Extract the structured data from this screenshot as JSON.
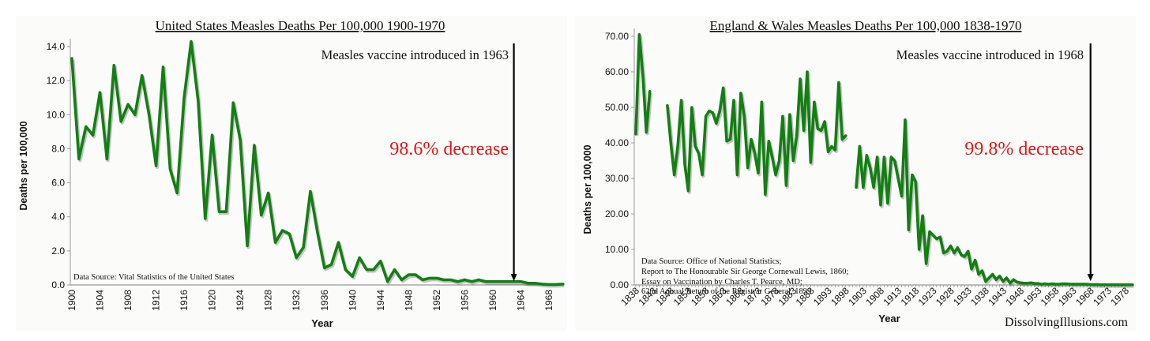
{
  "chart_data": [
    {
      "type": "line",
      "title": "United States Measles Deaths Per 100,000 1900-1970",
      "xlabel": "Year",
      "ylabel": "Deaths per 100,000",
      "ylim": [
        0,
        14
      ],
      "xlim": [
        1900,
        1970
      ],
      "grid": false,
      "y_ticks": [
        "0.0",
        "2.0",
        "4.0",
        "6.0",
        "8.0",
        "10.0",
        "12.0",
        "14.0"
      ],
      "x_ticks": [
        "1900",
        "1904",
        "1908",
        "1912",
        "1916",
        "1920",
        "1924",
        "1928",
        "1932",
        "1936",
        "1940",
        "1944",
        "1948",
        "1952",
        "1956",
        "1960",
        "1964",
        "1968"
      ],
      "annotations": {
        "vaccine": "Measles vaccine introduced in 1963",
        "vaccine_year": 1963,
        "decrease": "98.6% decrease",
        "source": "Data Source:  Vital Statistics of the United States"
      },
      "series": [
        {
          "name": "Deaths per 100,000",
          "color": "#137f13",
          "x": [
            1900,
            1901,
            1902,
            1903,
            1904,
            1905,
            1906,
            1907,
            1908,
            1909,
            1910,
            1911,
            1912,
            1913,
            1914,
            1915,
            1916,
            1917,
            1918,
            1919,
            1920,
            1921,
            1922,
            1923,
            1924,
            1925,
            1926,
            1927,
            1928,
            1929,
            1930,
            1931,
            1932,
            1933,
            1934,
            1935,
            1936,
            1937,
            1938,
            1939,
            1940,
            1941,
            1942,
            1943,
            1944,
            1945,
            1946,
            1947,
            1948,
            1949,
            1950,
            1951,
            1952,
            1953,
            1954,
            1955,
            1956,
            1957,
            1958,
            1959,
            1960,
            1961,
            1962,
            1963,
            1964,
            1965,
            1966,
            1967,
            1968,
            1969,
            1970
          ],
          "values": [
            13.3,
            7.4,
            9.3,
            8.8,
            11.3,
            7.4,
            12.9,
            9.6,
            10.6,
            10.0,
            12.3,
            10.0,
            7.0,
            12.8,
            6.8,
            5.4,
            11.0,
            14.3,
            10.8,
            3.9,
            8.8,
            4.3,
            4.3,
            10.7,
            8.5,
            2.3,
            8.2,
            4.1,
            5.4,
            2.5,
            3.2,
            3.0,
            1.6,
            2.2,
            5.5,
            3.1,
            1.0,
            1.2,
            2.5,
            0.9,
            0.5,
            1.6,
            0.9,
            0.9,
            1.4,
            0.2,
            0.9,
            0.3,
            0.6,
            0.6,
            0.3,
            0.4,
            0.4,
            0.3,
            0.3,
            0.2,
            0.3,
            0.2,
            0.3,
            0.2,
            0.2,
            0.2,
            0.2,
            0.2,
            0.2,
            0.1,
            0.1,
            0.05,
            0.03,
            0.03,
            0.05
          ]
        }
      ]
    },
    {
      "type": "line",
      "title": "England & Wales Measles Deaths Per 100,000 1838-1970",
      "xlabel": "Year",
      "ylabel": "Deaths per 100,000",
      "ylim": [
        0,
        70
      ],
      "xlim": [
        1838,
        1978
      ],
      "grid": false,
      "y_ticks": [
        "0.00",
        "10.00",
        "20.00",
        "30.00",
        "40.00",
        "50.00",
        "60.00",
        "70.00"
      ],
      "x_ticks": [
        "1838",
        "1843",
        "1848",
        "1853",
        "1858",
        "1863",
        "1868",
        "1873",
        "1878",
        "1883",
        "1888",
        "1893",
        "1898",
        "1903",
        "1908",
        "1913",
        "1918",
        "1923",
        "1928",
        "1933",
        "1938",
        "1943",
        "1948",
        "1953",
        "1958",
        "1963",
        "1968",
        "1973",
        "1978"
      ],
      "annotations": {
        "vaccine": "Measles vaccine introduced in 1968",
        "vaccine_year": 1968,
        "decrease": "99.8% decrease",
        "source": [
          "Data Source:  Office of National Statistics;",
          "Report to The Honourable Sir George Cornewall Lewis, 1860;",
          "Essay on Vaccination by Charles T. Pearce, MD;",
          "62nd Annual Return of the Registrar General, 1899"
        ],
        "credit": "DissolvingIllusions.com"
      },
      "series": [
        {
          "name": "Deaths per 100,000",
          "color": "#137f13",
          "x_start": 1838,
          "values": [
            42.5,
            70.5,
            59,
            43,
            54.5,
            null,
            null,
            null,
            null,
            50.5,
            40,
            31,
            39,
            52,
            34,
            26.5,
            50,
            39,
            37,
            31,
            47.5,
            49,
            48.5,
            45.5,
            49,
            55.5,
            40.5,
            41,
            52,
            31,
            54,
            47.5,
            33,
            41,
            37,
            31.5,
            51.5,
            25.5,
            40.5,
            36,
            31,
            35,
            47.5,
            28,
            48,
            35,
            42,
            58,
            43.5,
            60,
            34.5,
            51.5,
            44,
            43.5,
            46,
            37.5,
            39,
            38,
            57,
            41,
            42,
            null,
            null,
            27.5,
            39,
            27.5,
            36.5,
            33,
            27.5,
            36,
            22.5,
            36,
            23,
            36,
            35,
            30,
            25,
            46.5,
            15.5,
            31,
            29,
            10,
            19.5,
            6,
            15,
            14,
            13,
            13.5,
            9,
            9.5,
            11,
            9,
            10.5,
            8.5,
            8,
            9.5,
            4.5,
            7,
            3,
            4,
            1,
            2,
            3,
            1.5,
            2.5,
            1,
            2,
            0.5,
            1.5,
            0.8,
            0.6,
            0.5,
            0.5,
            0.6,
            0.4,
            0.4,
            0.2,
            0.3,
            0.2,
            0.3,
            0.2,
            0.2,
            0.3,
            0.3,
            0.2,
            0.2,
            0.2,
            0.2,
            0.2,
            0.2,
            0.1,
            0.1,
            0.1,
            0.05,
            0.05,
            0.05,
            0.05,
            0.05,
            0.05,
            0.05,
            0.05,
            0.05,
            0.05
          ]
        }
      ]
    }
  ]
}
